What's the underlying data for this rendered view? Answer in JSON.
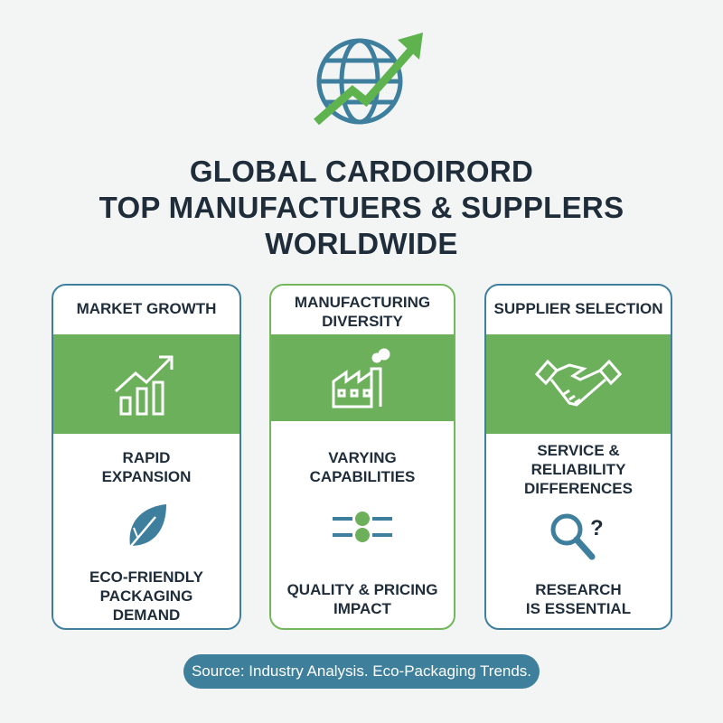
{
  "header": {
    "title_lines": [
      "GLOBAL CARDOIRORD",
      "TOP MANUFACTUERS & SUPPLERS",
      "WORLDWIDE"
    ],
    "logo_icon": "globe-with-growth-arrow-icon"
  },
  "cards": [
    {
      "heading": "MARKET GROWTH",
      "band_icon": "bar-chart-growth-icon",
      "line1": [
        "RAPID",
        "EXPANSION"
      ],
      "mid_icon": "leaf-icon",
      "line2": [
        "ECO-FRIENDLY",
        "PACKAGING",
        "DEMAND"
      ]
    },
    {
      "heading": [
        "MANUFACTURING",
        "DIVERSITY"
      ],
      "band_icon": "factory-icon",
      "line1": [
        "VARYING",
        "CAPABILITIES"
      ],
      "mid_icon": "sliders-icon",
      "line2": [
        "QUALITY & PRICING",
        "IMPACT"
      ]
    },
    {
      "heading": "SUPPLIER SELECTION",
      "band_icon": "handshake-icon",
      "line1": [
        "SERVICE &",
        "RELIABILITY",
        "DIFFERENCES"
      ],
      "mid_icon": "magnifier-question-icon",
      "line2": [
        "RESEARCH",
        "IS ESSENTIAL"
      ]
    }
  ],
  "footer": {
    "source": "Source: Industry Analysis. Eco-Packaging Trends."
  },
  "colors": {
    "blue": "#3f7f9e",
    "green": "#6db05c",
    "text": "#1f2d3a"
  }
}
